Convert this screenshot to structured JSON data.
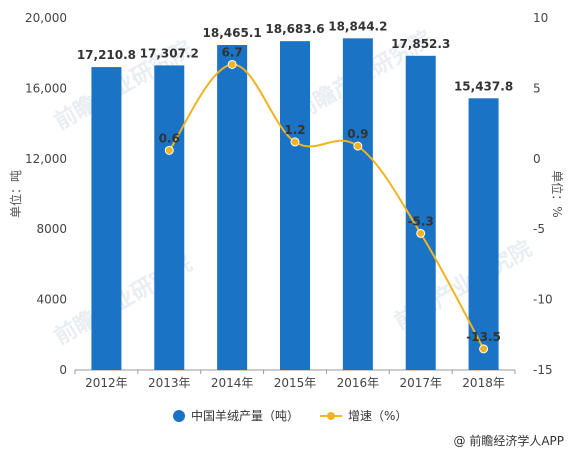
{
  "chart_data": {
    "type": "bar+line",
    "categories": [
      "2012年",
      "2013年",
      "2014年",
      "2015年",
      "2016年",
      "2017年",
      "2018年"
    ],
    "series": [
      {
        "name": "中国羊绒产量（吨）",
        "type": "bar",
        "axis": "left",
        "values": [
          17210.8,
          17307.2,
          18465.1,
          18683.6,
          18844.2,
          17852.3,
          15437.8
        ],
        "labels": [
          "17,210.8",
          "17,307.2",
          "18,465.1",
          "18,683.6",
          "18,844.2",
          "17,852.3",
          "15,437.8"
        ],
        "color": "#1a73c4"
      },
      {
        "name": "增速（%）",
        "type": "line",
        "axis": "right",
        "values": [
          null,
          0.6,
          6.7,
          1.2,
          0.9,
          -5.3,
          -13.5
        ],
        "labels": [
          "",
          "0.6",
          "6.7",
          "1.2",
          "0.9",
          "-5.3",
          "-13.5"
        ],
        "color": "#f0b323"
      }
    ],
    "y_left": {
      "label": "单位：吨",
      "ylim": [
        0,
        20000
      ],
      "ticks": [
        "0",
        "4000",
        "8000",
        "12,000",
        "16,000",
        "20,000"
      ],
      "tick_values": [
        0,
        4000,
        8000,
        12000,
        16000,
        20000
      ]
    },
    "y_right": {
      "label": "单位：%",
      "ylim": [
        -15,
        10
      ],
      "ticks": [
        "-15",
        "-10",
        "-5",
        "0",
        "5",
        "10"
      ],
      "tick_values": [
        -15,
        -10,
        -5,
        0,
        5,
        10
      ]
    },
    "legend_position": "bottom",
    "grid": false
  },
  "watermark": "前瞻产业研究院",
  "source": "@ 前瞻经济学人APP"
}
